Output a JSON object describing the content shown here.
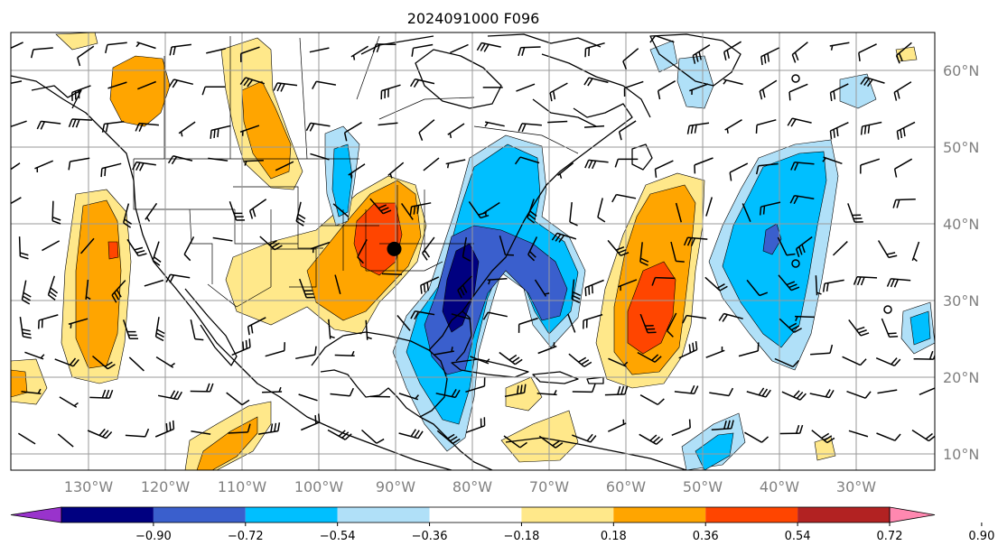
{
  "title": "2024091000 F096",
  "map": {
    "lon_range": [
      -140,
      -20
    ],
    "lat_range": [
      8,
      65
    ],
    "lon_labels": [
      "130°W",
      "120°W",
      "110°W",
      "100°W",
      "90°W",
      "80°W",
      "70°W",
      "60°W",
      "50°W",
      "40°W",
      "30°W"
    ],
    "lat_labels": [
      "60°N",
      "50°N",
      "40°N",
      "30°N",
      "20°N",
      "10°N"
    ],
    "marker": {
      "lon": -90.2,
      "lat": 36.8
    }
  },
  "colorbar": {
    "ticks": [
      "−0.90",
      "−0.72",
      "−0.54",
      "−0.36",
      "−0.18",
      "0.18",
      "0.36",
      "0.54",
      "0.72",
      "0.90"
    ],
    "colors": {
      "low_extend": "#9933cc",
      "b1": "#000080",
      "b2": "#3a5fcd",
      "b3": "#00bfff",
      "b4": "#b0e0f8",
      "neutral": "#ffffff",
      "p1": "#ffe88a",
      "p2": "#ffa500",
      "p3": "#ff4500",
      "p4": "#b22222",
      "high_extend": "#ff88b0"
    }
  }
}
